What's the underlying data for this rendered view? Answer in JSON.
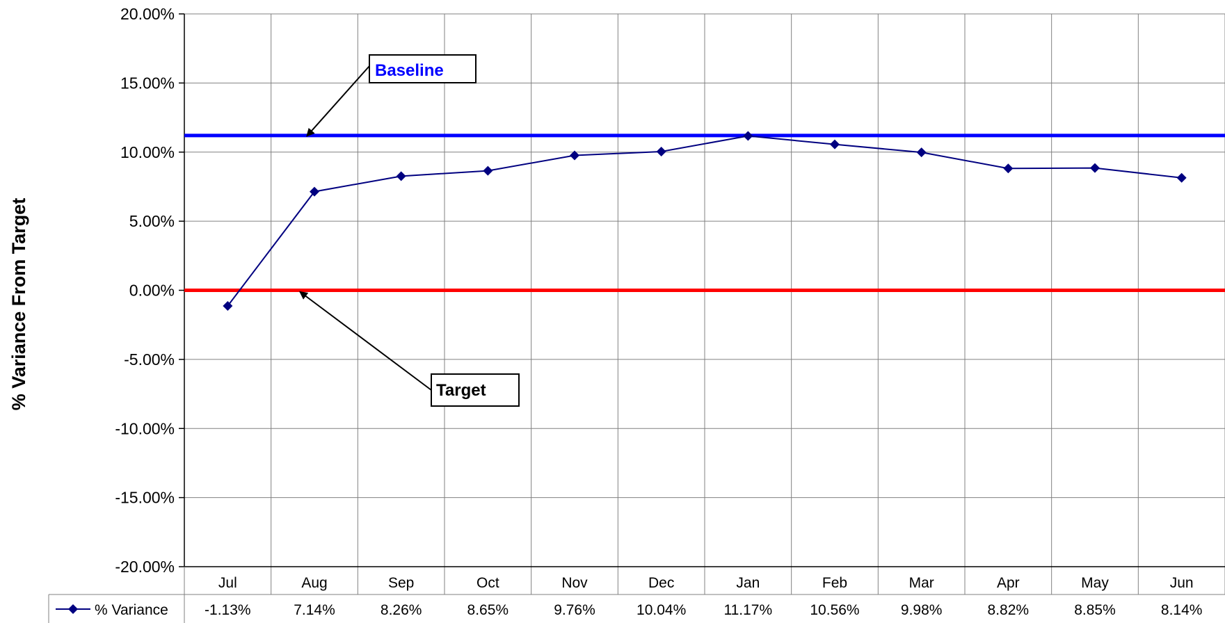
{
  "chart_data": {
    "type": "line",
    "title": "",
    "xlabel": "",
    "ylabel": "% Variance From Target",
    "ylim": [
      -20,
      20
    ],
    "y_tick_values": [
      20,
      15,
      10,
      5,
      0,
      -5,
      -10,
      -15,
      -20
    ],
    "y_tick_labels": [
      "20.00%",
      "15.00%",
      "10.00%",
      "5.00%",
      "0.00%",
      "-5.00%",
      "-10.00%",
      "-15.00%",
      "-20.00%"
    ],
    "categories": [
      "Jul",
      "Aug",
      "Sep",
      "Oct",
      "Nov",
      "Dec",
      "Jan",
      "Feb",
      "Mar",
      "Apr",
      "May",
      "Jun"
    ],
    "grid": true,
    "legend_position": "bottom-left (data table)",
    "series": [
      {
        "name": "% Variance",
        "color": "#000080",
        "marker": "diamond",
        "values": [
          -1.13,
          7.14,
          8.26,
          8.65,
          9.76,
          10.04,
          11.17,
          10.56,
          9.98,
          8.82,
          8.85,
          8.14
        ],
        "value_labels": [
          "-1.13%",
          "7.14%",
          "8.26%",
          "8.65%",
          "9.76%",
          "10.04%",
          "11.17%",
          "10.56%",
          "9.98%",
          "8.82%",
          "8.85%",
          "8.14%"
        ]
      }
    ],
    "reference_lines": [
      {
        "name": "Baseline",
        "value": 11.2,
        "color": "#0000ff"
      },
      {
        "name": "Target",
        "value": 0,
        "color": "#ff0000"
      }
    ],
    "annotations": [
      {
        "text": "Baseline",
        "color": "#0000ff",
        "points_to": "Baseline"
      },
      {
        "text": "Target",
        "color": "#000000",
        "points_to": "Target"
      }
    ]
  }
}
